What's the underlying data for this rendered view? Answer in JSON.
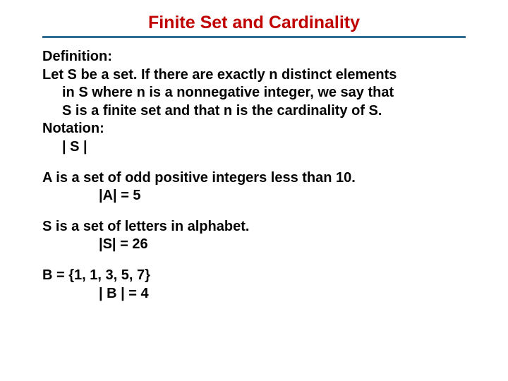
{
  "colors": {
    "title": "#c00000",
    "rule": "#2f6e91",
    "text": "#000000",
    "background": "#ffffff"
  },
  "fontsize": {
    "title": 25,
    "body": 20
  },
  "title": "Finite Set and Cardinality",
  "definition_label": "Definition:",
  "def_line1": "Let S be a set. If there are exactly n distinct elements",
  "def_line2": "in S where n is a nonnegative integer, we say that",
  "def_line3": "S is a finite set and that n is the cardinality of S.",
  "notation_label": "Notation:",
  "notation_value": "| S |",
  "ex1_line": "A is a set of odd positive integers less than 10.",
  "ex1_value": "|A| = 5",
  "ex2_line": "S is a set of letters in alphabet.",
  "ex2_value": "|S| = 26",
  "ex3_line": "B = {1, 1, 3, 5, 7}",
  "ex3_value": "| B | = 4"
}
